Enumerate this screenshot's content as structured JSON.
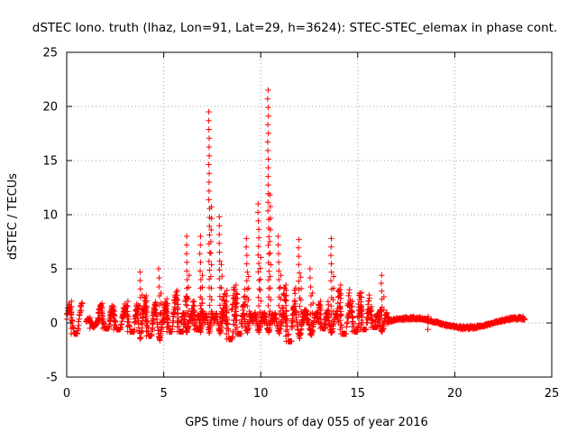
{
  "chart_data": {
    "type": "scatter",
    "title": "dSTEC Iono. truth (lhaz, Lon=91, Lat=29, h=3624): STEC-STEC_elemax in phase cont.",
    "xlabel": "GPS time / hours of day 055 of year 2016",
    "ylabel": "dSTEC  / TECUs",
    "xlim": [
      0,
      25
    ],
    "ylim": [
      -5,
      25
    ],
    "xticks": [
      0,
      5,
      10,
      15,
      20,
      25
    ],
    "yticks": [
      -5,
      0,
      5,
      10,
      15,
      20,
      25
    ],
    "xtick_labels": [
      "0",
      "5",
      "10",
      "15",
      "20",
      "25"
    ],
    "ytick_labels": [
      "-5",
      "0",
      "5",
      "10",
      "15",
      "20",
      "25"
    ],
    "grid": true,
    "marker": "+",
    "color": "#ff0000",
    "series": [
      {
        "name": "dSTEC",
        "passes": [
          {
            "start": 0.0,
            "end": 0.8,
            "peak": 2.0,
            "min": -1.0
          },
          {
            "start": 1.0,
            "end": 1.7,
            "peak": 0.5,
            "min": -0.5
          },
          {
            "start": 1.6,
            "end": 2.4,
            "peak": 1.8,
            "min": -0.5
          },
          {
            "start": 2.2,
            "end": 3.0,
            "peak": 1.5,
            "min": -0.6
          },
          {
            "start": 2.9,
            "end": 3.7,
            "peak": 2.0,
            "min": -0.8
          },
          {
            "start": 3.5,
            "end": 4.1,
            "peak": 4.7,
            "min": -1.6
          },
          {
            "start": 3.9,
            "end": 4.6,
            "peak": 2.5,
            "min": -1.2
          },
          {
            "start": 4.4,
            "end": 5.2,
            "peak": 5.0,
            "min": -1.7
          },
          {
            "start": 5.0,
            "end": 5.6,
            "peak": 2.2,
            "min": -0.8
          },
          {
            "start": 5.5,
            "end": 6.2,
            "peak": 3.0,
            "min": -0.8
          },
          {
            "start": 5.9,
            "end": 6.5,
            "peak": 8.0,
            "min": -0.5
          },
          {
            "start": 6.4,
            "end": 7.0,
            "peak": 2.0,
            "min": -0.6
          },
          {
            "start": 6.7,
            "end": 7.1,
            "peak": 8.0,
            "min": -0.3
          },
          {
            "start": 7.1,
            "end": 7.6,
            "peak": 19.5,
            "min": -0.2
          },
          {
            "start": 7.6,
            "end": 8.2,
            "peak": 9.8,
            "min": -0.5
          },
          {
            "start": 8.0,
            "end": 8.8,
            "peak": 3.0,
            "min": -1.5
          },
          {
            "start": 8.5,
            "end": 9.2,
            "peak": 3.5,
            "min": -1.0
          },
          {
            "start": 9.0,
            "end": 9.6,
            "peak": 7.8,
            "min": -0.8
          },
          {
            "start": 9.6,
            "end": 10.2,
            "peak": 11.0,
            "min": 0.2
          },
          {
            "start": 10.1,
            "end": 10.7,
            "peak": 21.5,
            "min": 0.5
          },
          {
            "start": 10.6,
            "end": 11.3,
            "peak": 8.0,
            "min": -0.8
          },
          {
            "start": 11.1,
            "end": 11.8,
            "peak": 3.5,
            "min": -1.7
          },
          {
            "start": 11.6,
            "end": 12.4,
            "peak": 7.7,
            "min": -1.5
          },
          {
            "start": 12.2,
            "end": 13.0,
            "peak": 5.0,
            "min": -1.2
          },
          {
            "start": 12.9,
            "end": 13.5,
            "peak": 2.0,
            "min": -0.5
          },
          {
            "start": 13.3,
            "end": 14.0,
            "peak": 7.8,
            "min": -0.3
          },
          {
            "start": 13.9,
            "end": 14.6,
            "peak": 3.5,
            "min": -1.0
          },
          {
            "start": 14.5,
            "end": 15.2,
            "peak": 2.0,
            "min": -0.8
          },
          {
            "start": 15.0,
            "end": 15.6,
            "peak": 2.8,
            "min": -0.6
          },
          {
            "start": 15.5,
            "end": 16.2,
            "peak": 1.5,
            "min": -0.4
          },
          {
            "start": 15.9,
            "end": 16.6,
            "peak": 4.4,
            "min": -0.2
          },
          {
            "start": 16.5,
            "end": 23.6,
            "peak": 0.6,
            "min": -0.6
          }
        ]
      }
    ]
  }
}
